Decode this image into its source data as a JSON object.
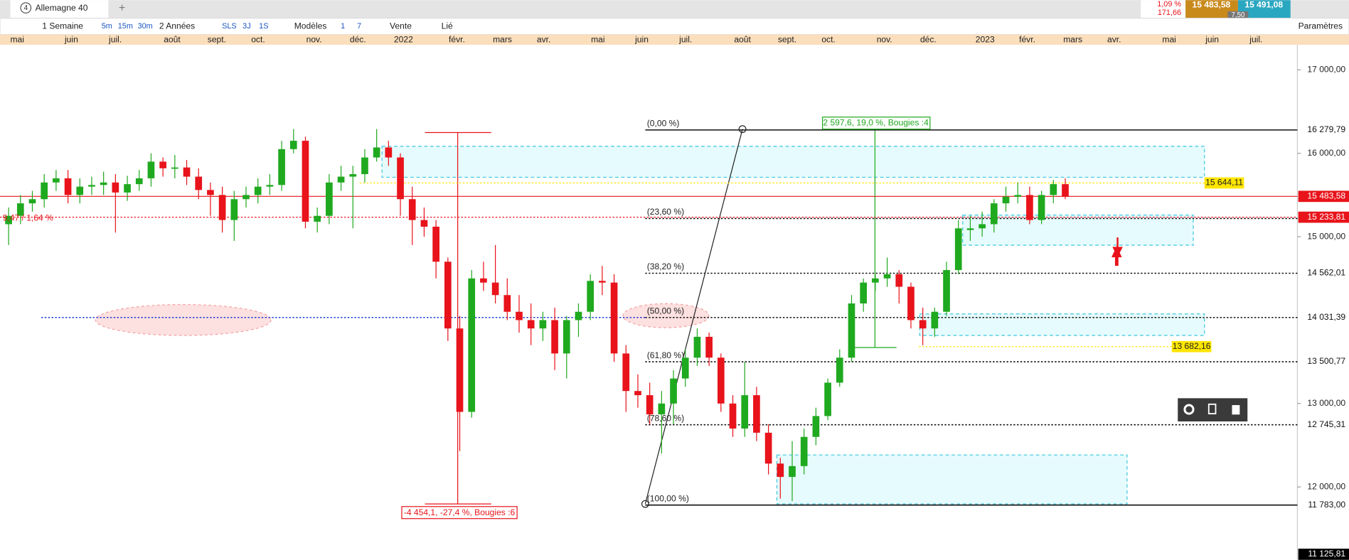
{
  "tab": {
    "number": "4",
    "title": "Allemagne 40"
  },
  "toolbar": {
    "interval": "1 Semaine",
    "quick": [
      "5m",
      "15m",
      "30m"
    ],
    "range": "2 Années",
    "modes": [
      "SLS",
      "3J",
      "1S"
    ],
    "models": "Modèles",
    "counts": [
      "1",
      "7"
    ],
    "order": "Vente",
    "link": "Lié",
    "settings": "Paramètres"
  },
  "quote": {
    "change": "1,09 %",
    "change_abs": "171,66",
    "bid": "15 483,58",
    "ask": "15 491,08",
    "spread": "7,50"
  },
  "chart_data": {
    "type": "candlestick",
    "months": [
      "mai",
      "juin",
      "juil.",
      "août",
      "sept.",
      "oct.",
      "nov.",
      "déc.",
      "2022",
      "févr.",
      "mars",
      "avr.",
      "mai",
      "juin",
      "juil.",
      "août",
      "sept.",
      "oct.",
      "nov.",
      "déc.",
      "2023",
      "févr.",
      "mars",
      "avr.",
      "mai",
      "juin",
      "juil."
    ],
    "open": [
      15150,
      15250,
      15400,
      15450,
      15650,
      15700,
      15500,
      15600,
      15620,
      15650,
      15530,
      15630,
      15700,
      15900,
      15820,
      15830,
      15720,
      15560,
      15500,
      15200,
      15450,
      15500,
      15600,
      15620,
      16050,
      16150,
      15180,
      15250,
      15650,
      15720,
      15750,
      15950,
      16070,
      15950,
      15450,
      15200,
      15120,
      14700,
      13900,
      12900,
      14500,
      14450,
      14300,
      14100,
      14000,
      13900,
      14000,
      13600,
      14000,
      14100,
      14470,
      14450,
      13600,
      13150,
      13100,
      12870,
      13000,
      13300,
      13550,
      13800,
      13550,
      13000,
      12700,
      13100,
      12650,
      12280,
      12120,
      12250,
      12600,
      12850,
      13250,
      13550,
      14200,
      14450,
      14500,
      14550,
      14400,
      14000,
      13900,
      14100,
      14600,
      15080,
      15100,
      15150,
      15400,
      15480,
      15500,
      15200,
      15500,
      15630
    ],
    "high": [
      15350,
      15500,
      15550,
      15750,
      15800,
      15800,
      15700,
      15720,
      15780,
      15750,
      15730,
      15800,
      16000,
      15950,
      15980,
      15920,
      15820,
      15650,
      15600,
      15550,
      15600,
      15700,
      15750,
      16150,
      16290,
      16200,
      15350,
      15750,
      15850,
      15850,
      16050,
      16290,
      16150,
      16000,
      15600,
      15350,
      15200,
      14750,
      14050,
      14600,
      14700,
      14900,
      14500,
      14300,
      14200,
      14100,
      14150,
      14050,
      14200,
      14550,
      14650,
      14550,
      13700,
      13350,
      13250,
      13150,
      13400,
      13650,
      13900,
      13850,
      13600,
      13100,
      13500,
      13200,
      12750,
      12350,
      12550,
      12700,
      12950,
      13300,
      13650,
      14300,
      14500,
      14550,
      14750,
      14600,
      14450,
      14150,
      14150,
      14700,
      15200,
      15250,
      15300,
      15450,
      15600,
      15650,
      15600,
      15550,
      15680,
      15700
    ],
    "low": [
      14900,
      15150,
      15300,
      15350,
      15550,
      15400,
      15400,
      15500,
      15500,
      15050,
      15430,
      15550,
      15600,
      15720,
      15700,
      15620,
      15450,
      15250,
      15050,
      14950,
      15350,
      15400,
      15500,
      15550,
      16000,
      15100,
      15050,
      15150,
      15550,
      15100,
      15650,
      15900,
      15850,
      15250,
      14900,
      15000,
      14500,
      13750,
      12430,
      12830,
      14350,
      14200,
      14000,
      13850,
      13700,
      13750,
      13400,
      13300,
      13800,
      14000,
      14300,
      13500,
      12900,
      12950,
      12750,
      12400,
      12750,
      13200,
      13450,
      13450,
      12900,
      12600,
      12600,
      12550,
      12150,
      11860,
      11830,
      12150,
      12500,
      12800,
      13200,
      13500,
      14100,
      14350,
      14400,
      14200,
      13900,
      13700,
      13800,
      14050,
      14550,
      14950,
      15000,
      15050,
      15300,
      15400,
      15150,
      15150,
      15400,
      15450
    ],
    "close": [
      15250,
      15400,
      15450,
      15650,
      15700,
      15500,
      15600,
      15620,
      15650,
      15530,
      15630,
      15700,
      15900,
      15820,
      15830,
      15720,
      15560,
      15500,
      15200,
      15450,
      15500,
      15600,
      15620,
      16050,
      16150,
      15180,
      15250,
      15650,
      15720,
      15750,
      15950,
      16070,
      15950,
      15450,
      15200,
      15120,
      14700,
      13900,
      12900,
      14500,
      14450,
      14300,
      14100,
      14000,
      13900,
      14000,
      13600,
      14000,
      14100,
      14470,
      14450,
      13600,
      13150,
      13100,
      12870,
      13000,
      13300,
      13550,
      13800,
      13550,
      13000,
      12700,
      13100,
      12650,
      12280,
      12120,
      12250,
      12600,
      12850,
      13250,
      13550,
      14200,
      14450,
      14500,
      14550,
      14400,
      14000,
      13900,
      14100,
      14600,
      15100,
      15100,
      15150,
      15400,
      15480,
      15500,
      15200,
      15500,
      15630,
      15480
    ],
    "ylim": [
      11125.81,
      17300
    ],
    "yticks": [
      {
        "value": 17000,
        "label": "17 000,00"
      },
      {
        "value": 16000,
        "label": "16 000,00"
      },
      {
        "value": 15000,
        "label": "15 000,00"
      },
      {
        "value": 13000,
        "label": "13 000,00"
      },
      {
        "value": 12000,
        "label": "12 000,00"
      }
    ],
    "fib_levels": [
      {
        "label": "(0,00 %)",
        "value": 16279.79,
        "value_label": "16 279,79"
      },
      {
        "label": "(23,60 %)",
        "value": 15218.55
      },
      {
        "label": "(38,20 %)",
        "value": 14562.01,
        "value_label": "14 562,01"
      },
      {
        "label": "(50,00 %)",
        "value": 14031.39,
        "value_label": "14 031,39"
      },
      {
        "label": "(61,80 %)",
        "value": 13500.77,
        "value_label": "13 500,77"
      },
      {
        "label": "(78,60 %)",
        "value": 12745.31,
        "value_label": "12 745,31"
      },
      {
        "label": "(100,00 %)",
        "value": 11783,
        "value_label": "11 783,00"
      }
    ],
    "price_lines": [
      {
        "value": 15644.11,
        "label": "15 644,11",
        "color": "#ffe600"
      },
      {
        "value": 15483.58,
        "label": "15 483,58",
        "color": "#e8131b"
      },
      {
        "value": 15233.81,
        "label": "15 233,81",
        "color": "#e8131b"
      },
      {
        "value": 13682.16,
        "label": "13 682,16",
        "color": "#ffe600"
      },
      {
        "value": 11125.81,
        "label": "11 125,81",
        "color": "#000000"
      }
    ],
    "annotations": {
      "rise": "2 597,6, 19,0 %, Bougies :4",
      "fall": "-4 454,1, -27,4 %, Bougies :6",
      "ratio": "9,47 / 1,64 %"
    },
    "colors": {
      "up": "#1fa91f",
      "down": "#e8131b"
    }
  }
}
